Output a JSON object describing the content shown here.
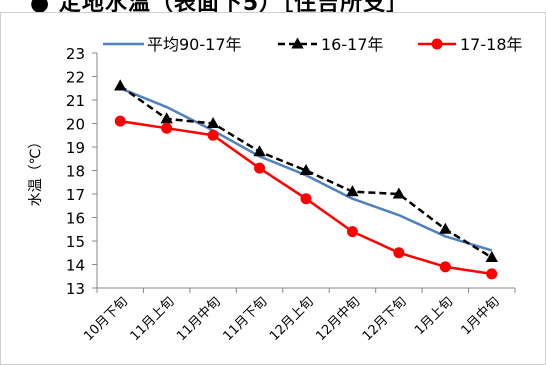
{
  "title": "● 定地水温（表面下5）［住吉所支］",
  "chart_data": {
    "type": "line",
    "categories": [
      "10月下旬",
      "11月上旬",
      "11月中旬",
      "11月下旬",
      "12月上旬",
      "12月中旬",
      "12月下旬",
      "1月上旬",
      "1月中旬"
    ],
    "ylabel": "水温（℃）",
    "xlabel": "",
    "ylim": [
      13,
      23
    ],
    "yticks": [
      13,
      14,
      15,
      16,
      17,
      18,
      19,
      20,
      21,
      22,
      23
    ],
    "grid": false,
    "legend": "top",
    "series": [
      {
        "name": "平均90-17年",
        "color": "#4f81bd",
        "marker": "none",
        "values": [
          21.5,
          20.7,
          19.7,
          18.6,
          17.8,
          16.8,
          16.1,
          15.2,
          14.6
        ]
      },
      {
        "name": "16-17年",
        "color": "#000000",
        "marker": "triangle",
        "dash": true,
        "values": [
          21.6,
          20.2,
          20.0,
          18.8,
          18.0,
          17.1,
          17.0,
          15.5,
          14.3
        ]
      },
      {
        "name": "17-18年",
        "color": "#ff0000",
        "marker": "circle",
        "values": [
          20.1,
          19.8,
          19.5,
          18.1,
          16.8,
          15.4,
          14.5,
          13.9,
          13.6
        ]
      }
    ]
  }
}
